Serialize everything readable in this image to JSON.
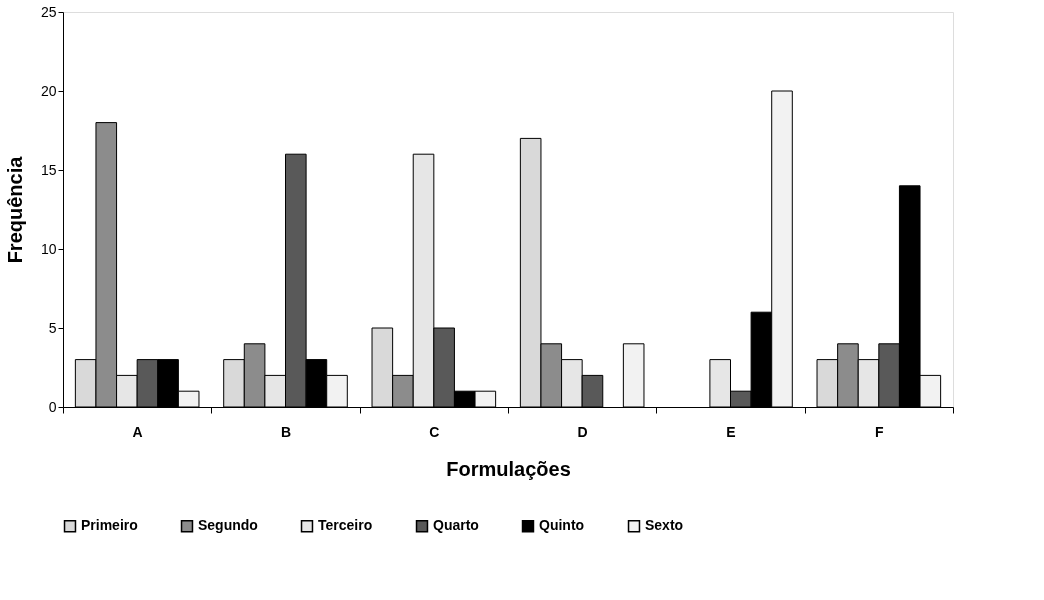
{
  "chart_data": {
    "type": "bar",
    "xlabel": "Formulações",
    "ylabel": "Frequência",
    "categories": [
      "A",
      "B",
      "C",
      "D",
      "E",
      "F"
    ],
    "series": [
      {
        "name": "Primeiro",
        "color": "#d9d9d9",
        "values": [
          3,
          3,
          5,
          17,
          null,
          3
        ]
      },
      {
        "name": "Segundo",
        "color": "#8c8c8c",
        "values": [
          18,
          4,
          2,
          4,
          null,
          4
        ]
      },
      {
        "name": "Terceiro",
        "color": "#e6e6e6",
        "values": [
          2,
          2,
          16,
          3,
          3,
          3
        ]
      },
      {
        "name": "Quarto",
        "color": "#595959",
        "values": [
          3,
          16,
          5,
          2,
          1,
          4
        ]
      },
      {
        "name": "Quinto",
        "color": "#000000",
        "values": [
          3,
          3,
          1,
          null,
          6,
          14
        ]
      },
      {
        "name": "Sexto",
        "color": "#f2f2f2",
        "values": [
          1,
          2,
          1,
          4,
          20,
          2
        ]
      }
    ],
    "ylim": [
      0,
      25
    ],
    "yticks": [
      0,
      5,
      10,
      15,
      20,
      25
    ],
    "grid": false,
    "legend": "bottom"
  }
}
